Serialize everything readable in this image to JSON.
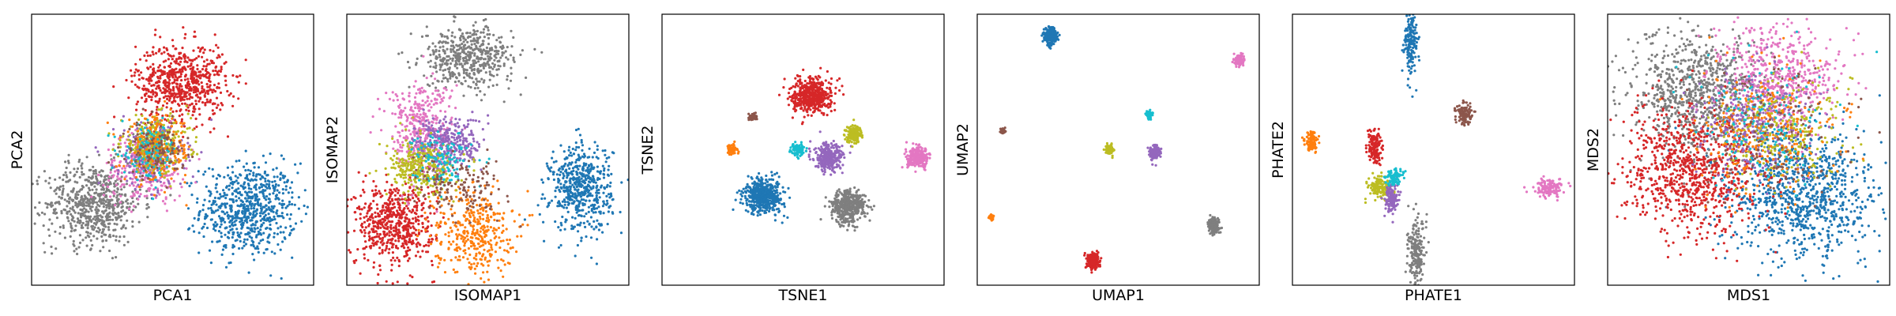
{
  "chart_data": [
    {
      "type": "scatter",
      "xlabel": "PCA1",
      "ylabel": "PCA2",
      "clusters": [
        {
          "color": "#1f77b4",
          "center": [
            0.77,
            0.28
          ],
          "spread": [
            0.085,
            0.085
          ],
          "count": 700
        },
        {
          "color": "#7f7f7f",
          "center": [
            0.22,
            0.3
          ],
          "spread": [
            0.085,
            0.075
          ],
          "count": 650
        },
        {
          "color": "#d62728",
          "center": [
            0.53,
            0.75
          ],
          "spread": [
            0.08,
            0.07
          ],
          "count": 650
        },
        {
          "color": "#e377c2",
          "center": [
            0.4,
            0.43
          ],
          "spread": [
            0.07,
            0.06
          ],
          "count": 300
        },
        {
          "color": "#9467bd",
          "center": [
            0.42,
            0.48
          ],
          "spread": [
            0.06,
            0.06
          ],
          "count": 250
        },
        {
          "color": "#bcbd22",
          "center": [
            0.44,
            0.52
          ],
          "spread": [
            0.06,
            0.05
          ],
          "count": 300
        },
        {
          "color": "#ff7f0e",
          "center": [
            0.45,
            0.5
          ],
          "spread": [
            0.06,
            0.06
          ],
          "count": 200
        },
        {
          "color": "#17becf",
          "center": [
            0.42,
            0.49
          ],
          "spread": [
            0.05,
            0.05
          ],
          "count": 120
        },
        {
          "color": "#8c564b",
          "center": [
            0.44,
            0.5
          ],
          "spread": [
            0.05,
            0.05
          ],
          "count": 120
        }
      ]
    },
    {
      "type": "scatter",
      "xlabel": "ISOMAP1",
      "ylabel": "ISOMAP2",
      "clusters": [
        {
          "color": "#1f77b4",
          "center": [
            0.83,
            0.36
          ],
          "spread": [
            0.055,
            0.08
          ],
          "count": 550
        },
        {
          "color": "#7f7f7f",
          "center": [
            0.43,
            0.84
          ],
          "spread": [
            0.08,
            0.055
          ],
          "count": 500
        },
        {
          "color": "#d62728",
          "center": [
            0.17,
            0.23
          ],
          "spread": [
            0.07,
            0.08
          ],
          "count": 600
        },
        {
          "color": "#ff7f0e",
          "center": [
            0.45,
            0.2
          ],
          "spread": [
            0.07,
            0.08
          ],
          "count": 380
        },
        {
          "color": "#e377c2",
          "center": [
            0.26,
            0.58
          ],
          "spread": [
            0.06,
            0.09
          ],
          "count": 380
        },
        {
          "color": "#9467bd",
          "center": [
            0.36,
            0.52
          ],
          "spread": [
            0.06,
            0.05
          ],
          "count": 320
        },
        {
          "color": "#bcbd22",
          "center": [
            0.26,
            0.43
          ],
          "spread": [
            0.06,
            0.05
          ],
          "count": 300
        },
        {
          "color": "#17becf",
          "center": [
            0.34,
            0.47
          ],
          "spread": [
            0.05,
            0.05
          ],
          "count": 120
        },
        {
          "color": "#8c564b",
          "center": [
            0.4,
            0.36
          ],
          "spread": [
            0.08,
            0.05
          ],
          "count": 150
        }
      ]
    },
    {
      "type": "scatter",
      "xlabel": "TSNE1",
      "ylabel": "TSNE2",
      "clusters": [
        {
          "color": "#d62728",
          "center": [
            0.53,
            0.7
          ],
          "spread": [
            0.035,
            0.032
          ],
          "count": 500
        },
        {
          "color": "#1f77b4",
          "center": [
            0.36,
            0.33
          ],
          "spread": [
            0.035,
            0.032
          ],
          "count": 500
        },
        {
          "color": "#7f7f7f",
          "center": [
            0.66,
            0.29
          ],
          "spread": [
            0.03,
            0.03
          ],
          "count": 450
        },
        {
          "color": "#9467bd",
          "center": [
            0.59,
            0.47
          ],
          "spread": [
            0.025,
            0.025
          ],
          "count": 300
        },
        {
          "color": "#e377c2",
          "center": [
            0.91,
            0.47
          ],
          "spread": [
            0.02,
            0.018
          ],
          "count": 250
        },
        {
          "color": "#bcbd22",
          "center": [
            0.68,
            0.56
          ],
          "spread": [
            0.016,
            0.016
          ],
          "count": 150
        },
        {
          "color": "#17becf",
          "center": [
            0.48,
            0.5
          ],
          "spread": [
            0.012,
            0.012
          ],
          "count": 90
        },
        {
          "color": "#ff7f0e",
          "center": [
            0.25,
            0.5
          ],
          "spread": [
            0.009,
            0.009
          ],
          "count": 60
        },
        {
          "color": "#8c564b",
          "center": [
            0.32,
            0.62
          ],
          "spread": [
            0.008,
            0.008
          ],
          "count": 50
        }
      ]
    },
    {
      "type": "scatter",
      "xlabel": "UMAP1",
      "ylabel": "UMAP2",
      "clusters": [
        {
          "color": "#1f77b4",
          "center": [
            0.26,
            0.92
          ],
          "spread": [
            0.011,
            0.015
          ],
          "count": 250
        },
        {
          "color": "#e377c2",
          "center": [
            0.93,
            0.83
          ],
          "spread": [
            0.008,
            0.01
          ],
          "count": 150
        },
        {
          "color": "#d62728",
          "center": [
            0.41,
            0.09
          ],
          "spread": [
            0.01,
            0.014
          ],
          "count": 250
        },
        {
          "color": "#7f7f7f",
          "center": [
            0.84,
            0.22
          ],
          "spread": [
            0.009,
            0.013
          ],
          "count": 200
        },
        {
          "color": "#9467bd",
          "center": [
            0.63,
            0.49
          ],
          "spread": [
            0.008,
            0.012
          ],
          "count": 150
        },
        {
          "color": "#bcbd22",
          "center": [
            0.47,
            0.5
          ],
          "spread": [
            0.007,
            0.008
          ],
          "count": 100
        },
        {
          "color": "#17becf",
          "center": [
            0.61,
            0.63
          ],
          "spread": [
            0.005,
            0.008
          ],
          "count": 60
        },
        {
          "color": "#ff7f0e",
          "center": [
            0.05,
            0.25
          ],
          "spread": [
            0.004,
            0.005
          ],
          "count": 40
        },
        {
          "color": "#8c564b",
          "center": [
            0.09,
            0.57
          ],
          "spread": [
            0.004,
            0.005
          ],
          "count": 40
        }
      ]
    },
    {
      "type": "scatter",
      "xlabel": "PHATE1",
      "ylabel": "PHATE2",
      "clusters": [
        {
          "color": "#1f77b4",
          "center": [
            0.42,
            0.9
          ],
          "spread": [
            0.012,
            0.06
          ],
          "count": 180
        },
        {
          "color": "#7f7f7f",
          "center": [
            0.44,
            0.12
          ],
          "spread": [
            0.015,
            0.06
          ],
          "count": 200
        },
        {
          "color": "#d62728",
          "center": [
            0.29,
            0.51
          ],
          "spread": [
            0.012,
            0.03
          ],
          "count": 150
        },
        {
          "color": "#ff7f0e",
          "center": [
            0.07,
            0.53
          ],
          "spread": [
            0.012,
            0.02
          ],
          "count": 100
        },
        {
          "color": "#e377c2",
          "center": [
            0.91,
            0.36
          ],
          "spread": [
            0.025,
            0.015
          ],
          "count": 130
        },
        {
          "color": "#8c564b",
          "center": [
            0.61,
            0.63
          ],
          "spread": [
            0.015,
            0.02
          ],
          "count": 110
        },
        {
          "color": "#bcbd22",
          "center": [
            0.31,
            0.36
          ],
          "spread": [
            0.02,
            0.02
          ],
          "count": 150
        },
        {
          "color": "#9467bd",
          "center": [
            0.35,
            0.32
          ],
          "spread": [
            0.012,
            0.03
          ],
          "count": 140
        },
        {
          "color": "#17becf",
          "center": [
            0.36,
            0.4
          ],
          "spread": [
            0.015,
            0.015
          ],
          "count": 90
        }
      ]
    },
    {
      "type": "scatter",
      "xlabel": "MDS1",
      "ylabel": "MDS2",
      "clusters": [
        {
          "color": "#1f77b4",
          "center": [
            0.69,
            0.33
          ],
          "spread": [
            0.13,
            0.12
          ],
          "count": 950
        },
        {
          "color": "#7f7f7f",
          "center": [
            0.32,
            0.7
          ],
          "spread": [
            0.12,
            0.12
          ],
          "count": 850
        },
        {
          "color": "#d62728",
          "center": [
            0.3,
            0.42
          ],
          "spread": [
            0.12,
            0.11
          ],
          "count": 850
        },
        {
          "color": "#e377c2",
          "center": [
            0.6,
            0.76
          ],
          "spread": [
            0.11,
            0.1
          ],
          "count": 550
        },
        {
          "color": "#9467bd",
          "center": [
            0.52,
            0.6
          ],
          "spread": [
            0.1,
            0.1
          ],
          "count": 300
        },
        {
          "color": "#bcbd22",
          "center": [
            0.62,
            0.56
          ],
          "spread": [
            0.12,
            0.1
          ],
          "count": 250
        },
        {
          "color": "#ff7f0e",
          "center": [
            0.58,
            0.58
          ],
          "spread": [
            0.13,
            0.12
          ],
          "count": 250
        },
        {
          "color": "#17becf",
          "center": [
            0.55,
            0.6
          ],
          "spread": [
            0.12,
            0.11
          ],
          "count": 150
        },
        {
          "color": "#8c564b",
          "center": [
            0.6,
            0.55
          ],
          "spread": [
            0.13,
            0.12
          ],
          "count": 150
        }
      ]
    }
  ]
}
